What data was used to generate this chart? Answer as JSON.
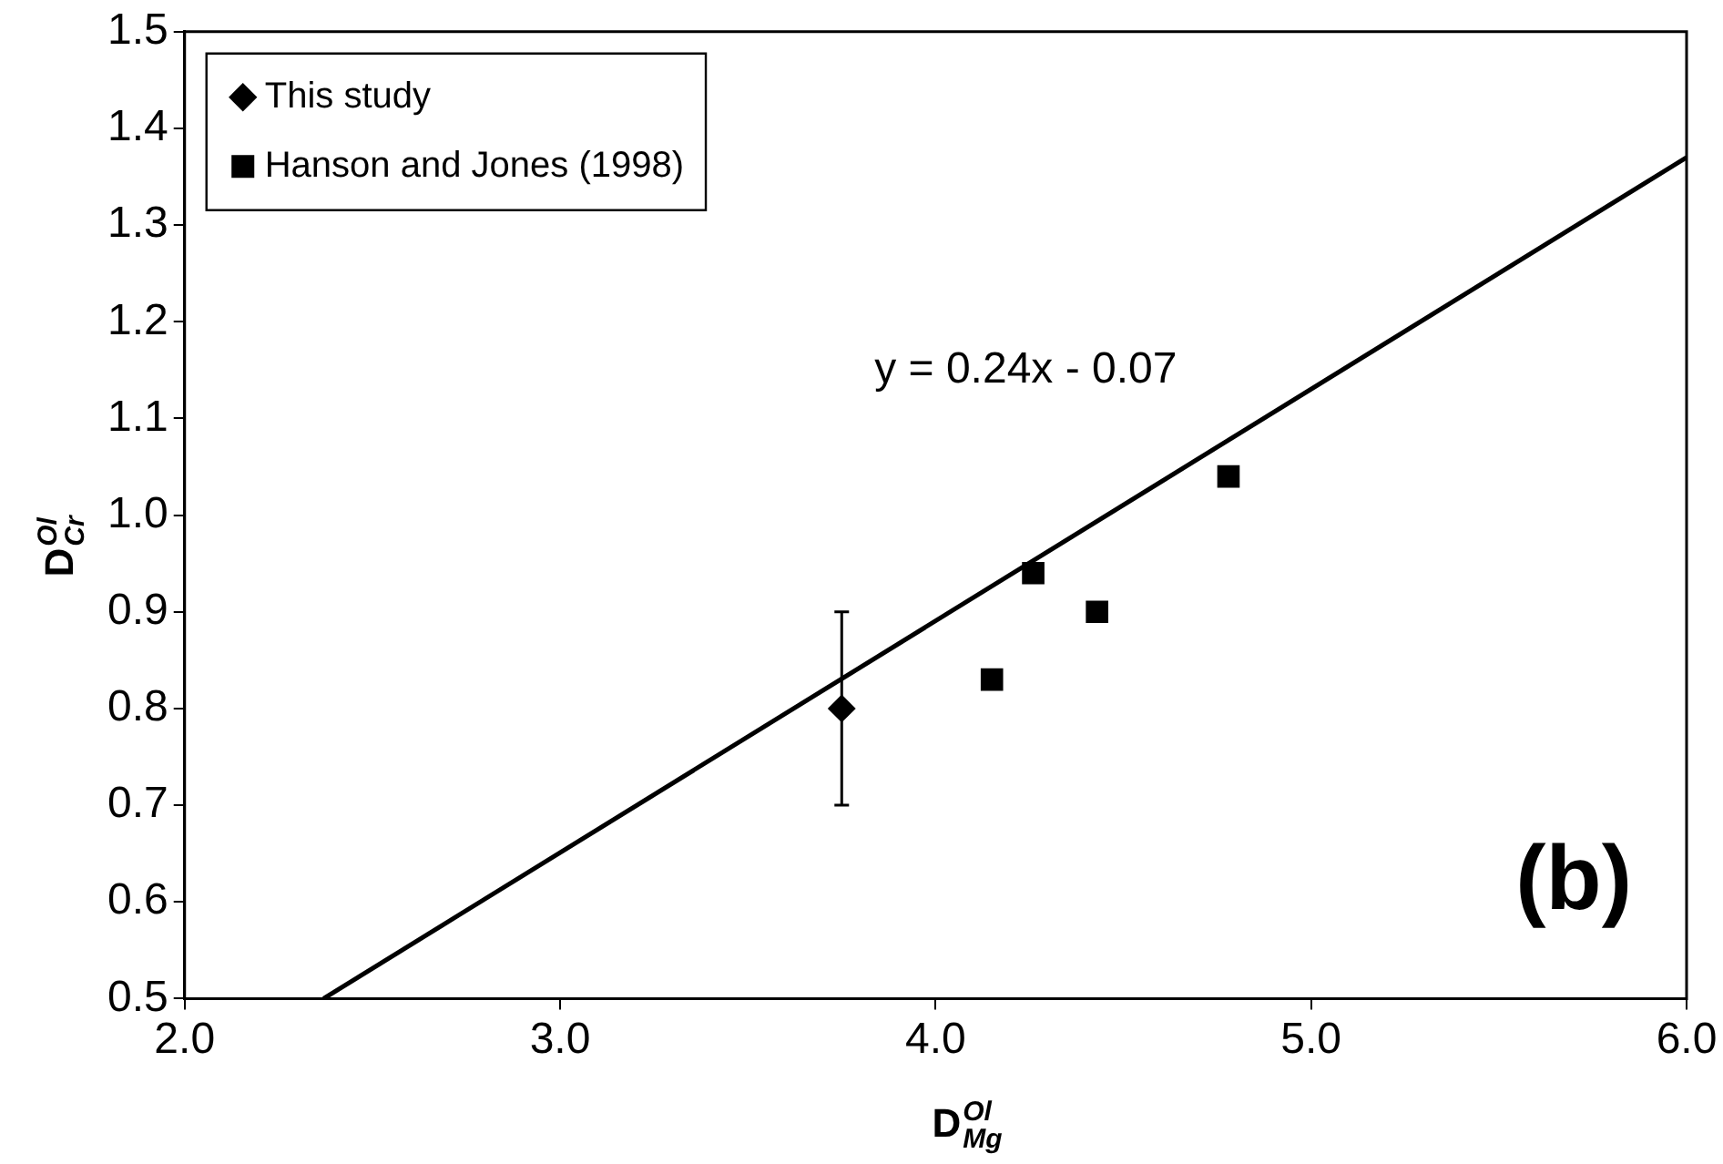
{
  "chart_data": {
    "type": "scatter",
    "xlabel": "D$^{Ol}$$_{Mg}$",
    "ylabel": "D$^{Ol}$$_{Cr}$",
    "xlim": [
      2.0,
      6.0
    ],
    "xticks": [
      {
        "value": 2,
        "label": "2.0"
      },
      {
        "value": 3,
        "label": "3.0"
      },
      {
        "value": 4,
        "label": "4.0"
      },
      {
        "value": 5,
        "label": "5.0"
      },
      {
        "value": 6,
        "label": "6.0"
      }
    ],
    "ylim": [
      0.5,
      1.5
    ],
    "yticks": [
      0.5,
      0.6,
      0.7,
      0.8,
      0.9,
      {
        "value": 1,
        "label": "1.0"
      },
      1.1,
      1.2,
      1.3,
      1.4,
      1.5
    ],
    "grid": false,
    "legend": "top left",
    "series": [
      {
        "name": "This study",
        "color": "#000000",
        "marker": "diamond",
        "x": [
          3.75
        ],
        "values": [
          0.8
        ],
        "errors": [
          0.1
        ]
      },
      {
        "name": "Hanson and Jones (1998)",
        "color": "#000000",
        "marker": "square",
        "x": [
          4.15,
          4.26,
          4.43,
          4.78
        ],
        "values": [
          0.83,
          0.94,
          0.9,
          1.04
        ]
      },
      {
        "type": "line",
        "color": "#000000",
        "marker": "none",
        "x": [
          2.37,
          6.0
        ],
        "values": [
          0.5,
          1.37
        ]
      }
    ],
    "annotations": [
      "y = 0.24x - 0.07",
      "(b)"
    ]
  }
}
